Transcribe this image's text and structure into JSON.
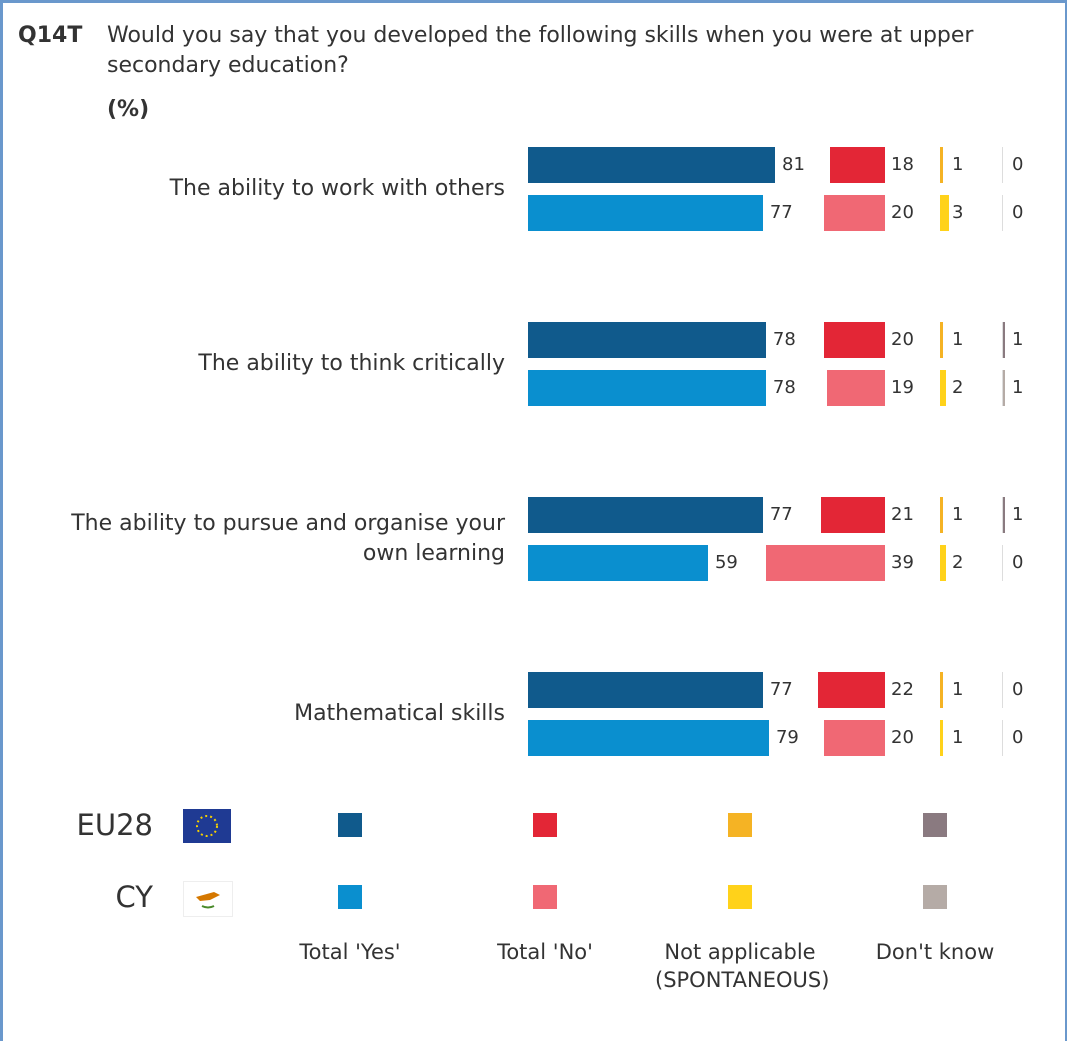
{
  "chart_data": {
    "type": "bar",
    "code": "Q14T",
    "title": "Would you say that you developed the following skills when you were at upper secondary education?",
    "unit": "(%)",
    "categories": [
      "The ability to work with others",
      "The ability to think critically",
      "The ability to pursue and organise your own learning",
      "Mathematical skills"
    ],
    "answers": [
      "Total 'Yes'",
      "Total 'No'",
      "Not applicable (SPONTANEOUS)",
      "Don't know"
    ],
    "series": [
      {
        "name": "EU28",
        "colors": [
          "#105a8c",
          "#e32636",
          "#f5b324",
          "#8a7a80"
        ],
        "values": [
          [
            81,
            18,
            1,
            0
          ],
          [
            78,
            20,
            1,
            1
          ],
          [
            77,
            21,
            1,
            1
          ],
          [
            77,
            22,
            1,
            0
          ]
        ]
      },
      {
        "name": "CY",
        "colors": [
          "#0a8fcf",
          "#f06874",
          "#ffd21a",
          "#b5aba6"
        ],
        "values": [
          [
            77,
            20,
            3,
            0
          ],
          [
            78,
            19,
            2,
            1
          ],
          [
            59,
            39,
            2,
            0
          ],
          [
            79,
            20,
            1,
            0
          ]
        ]
      }
    ]
  }
}
